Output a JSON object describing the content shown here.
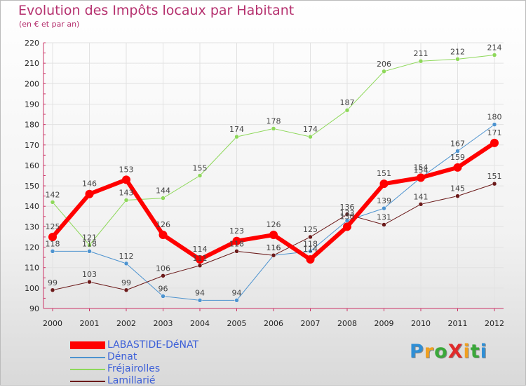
{
  "chart_data": {
    "type": "line",
    "title": "Evolution des Impôts locaux par Habitant",
    "subtitle": "(en € et par an)",
    "xlabel": "",
    "ylabel": "",
    "ylim": [
      90,
      220
    ],
    "yticks": [
      90,
      100,
      110,
      120,
      130,
      140,
      150,
      160,
      170,
      180,
      190,
      200,
      210,
      220
    ],
    "categories": [
      "2000",
      "2001",
      "2002",
      "2003",
      "2004",
      "2005",
      "2006",
      "2007",
      "2008",
      "2009",
      "2010",
      "2011",
      "2012"
    ],
    "grid": true,
    "legend_position": "bottom-left",
    "series": [
      {
        "name": "Fréjairolles",
        "color": "#8ed85a",
        "width": 1,
        "values": [
          142,
          121,
          143,
          144,
          155,
          174,
          178,
          174,
          187,
          206,
          211,
          212,
          214
        ],
        "labels": [
          "142",
          "121",
          "143",
          "144",
          "155",
          "174",
          "178",
          "174",
          "187",
          "206",
          "211",
          "212",
          "214"
        ]
      },
      {
        "name": "Dénat",
        "color": "#4d93cf",
        "width": 1,
        "values": [
          118,
          118,
          112,
          96,
          94,
          94,
          116,
          118,
          133,
          139,
          154,
          167,
          180
        ],
        "labels": [
          "118",
          "118",
          "112",
          "96",
          "94",
          "94",
          "116",
          "118",
          "133",
          "139",
          "154",
          "167",
          "180"
        ]
      },
      {
        "name": "Lamillarié",
        "color": "#6b1a1a",
        "width": 1,
        "values": [
          99,
          103,
          99,
          106,
          111,
          118,
          116,
          125,
          136,
          131,
          141,
          145,
          151
        ],
        "labels": [
          "99",
          "103",
          "99",
          "106",
          "111",
          "118",
          "116",
          "125",
          "136",
          "131",
          "141",
          "145",
          "151"
        ]
      },
      {
        "name": "LABASTIDE-DéNAT",
        "color": "#ff0000",
        "width": 6,
        "values": [
          125,
          146,
          153,
          126,
          114,
          123,
          126,
          114,
          130,
          151,
          154,
          159,
          171
        ],
        "labels": [
          "125",
          "146",
          "153",
          "126",
          "114",
          "123",
          "126",
          "114",
          "130",
          "151",
          "154",
          "159",
          "171"
        ]
      }
    ]
  },
  "legend": {
    "items": [
      {
        "name": "LABASTIDE-DéNAT",
        "color": "#ff0000",
        "width": 6
      },
      {
        "name": "Dénat",
        "color": "#4d93cf",
        "width": 2
      },
      {
        "name": "Fréjairolles",
        "color": "#8ed85a",
        "width": 2
      },
      {
        "name": "Lamillarié",
        "color": "#6b1a1a",
        "width": 2
      }
    ]
  },
  "logo": {
    "text": "ProXiti",
    "letter_colors": [
      "#2f8fd6",
      "#f0a020",
      "#3aa83a",
      "#e02b2b",
      "#f0a020",
      "#3aa83a",
      "#2f8fd6"
    ]
  }
}
